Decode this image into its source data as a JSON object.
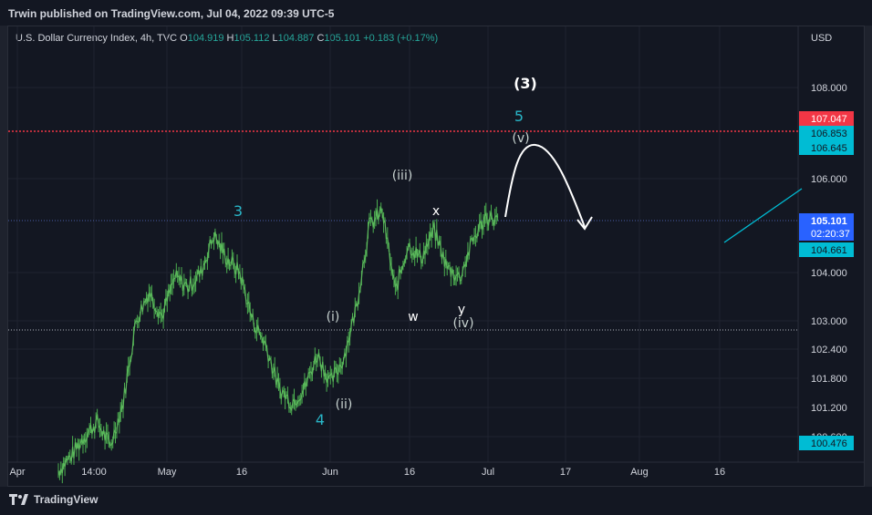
{
  "header": {
    "published": "Trwin published on TradingView.com, Jul 04, 2022 09:39 UTC-5"
  },
  "legend": {
    "symbol": "U.S. Dollar Currency Index, 4h, TVC",
    "open_label": "O",
    "open": "104.919",
    "high_label": "H",
    "high": "105.112",
    "low_label": "L",
    "low": "104.887",
    "close_label": "C",
    "close": "105.101",
    "change": "+0.183 (+0.17%)"
  },
  "currency": "USD",
  "footer": {
    "brand": "TradingView"
  },
  "colors": {
    "background": "#131722",
    "candle": "#4caf50",
    "resistance": "#f23645",
    "dotted_line": "#9598a1",
    "price_line": "#2962ff",
    "cyan": "#00bcd4",
    "wave_cyan": "#29b6c8",
    "wave_light": "#c8d3d0"
  },
  "chart_data": {
    "type": "line",
    "x_labels": [
      "Apr",
      "14:00",
      "May",
      "16",
      "Jun",
      "16",
      "Jul",
      "17",
      "Aug",
      "16"
    ],
    "y_labels": [
      "108.000",
      "106.000",
      "104.000",
      "103.000",
      "102.400",
      "101.800",
      "101.200",
      "100.600"
    ],
    "price_tags": [
      {
        "value": "107.047",
        "kind": "red"
      },
      {
        "value": "106.853",
        "kind": "cyan"
      },
      {
        "value": "106.645",
        "kind": "cyan"
      },
      {
        "value": "105.101",
        "kind": "current",
        "countdown": "02:20:37"
      },
      {
        "value": "104.661",
        "kind": "cyan"
      },
      {
        "value": "100.476",
        "kind": "cyan"
      }
    ],
    "horizontal_lines": [
      {
        "value": 107.047,
        "style": "dotted-red"
      },
      {
        "value": 105.101,
        "style": "dotted-price"
      },
      {
        "value": 102.8,
        "style": "dotted"
      }
    ],
    "series": [
      {
        "x": [
          "Apr 08",
          "Apr 12",
          "Apr 15",
          "Apr 18",
          "Apr 21",
          "Apr 25",
          "Apr 28",
          "Apr 29",
          "May 02",
          "May 04",
          "May 06",
          "May 09",
          "May 12",
          "May 13",
          "May 16",
          "May 18",
          "May 20",
          "May 24",
          "May 27",
          "May 30",
          "Jun 01",
          "Jun 03",
          "Jun 06",
          "Jun 09",
          "Jun 13",
          "Jun 14",
          "Jun 16",
          "Jun 17",
          "Jun 20",
          "Jun 22",
          "Jun 24",
          "Jun 27",
          "Jun 29",
          "Jul 01",
          "Jul 04"
        ],
        "values": [
          99.9,
          100.2,
          100.6,
          100.9,
          100.4,
          101.3,
          103.0,
          103.6,
          103.1,
          103.9,
          103.7,
          104.0,
          104.8,
          104.3,
          104.0,
          103.0,
          102.5,
          101.6,
          101.3,
          101.6,
          102.3,
          101.7,
          102.2,
          103.3,
          105.0,
          105.3,
          103.6,
          104.6,
          104.3,
          104.9,
          104.1,
          103.9,
          104.7,
          105.2,
          105.1
        ]
      }
    ],
    "annotations": {
      "waves": [
        {
          "label": "3",
          "color": "cyan"
        },
        {
          "label": "4",
          "color": "cyan"
        },
        {
          "label": "(i)",
          "color": "light"
        },
        {
          "label": "(ii)",
          "color": "light"
        },
        {
          "label": "(iii)",
          "color": "light"
        },
        {
          "label": "w",
          "color": "white"
        },
        {
          "label": "x",
          "color": "white"
        },
        {
          "label": "y",
          "color": "white"
        },
        {
          "label": "(iv)",
          "color": "light"
        },
        {
          "label": "(v)",
          "color": "light"
        },
        {
          "label": "5",
          "color": "cyan"
        },
        {
          "label": "(3)",
          "color": "white"
        }
      ]
    }
  }
}
